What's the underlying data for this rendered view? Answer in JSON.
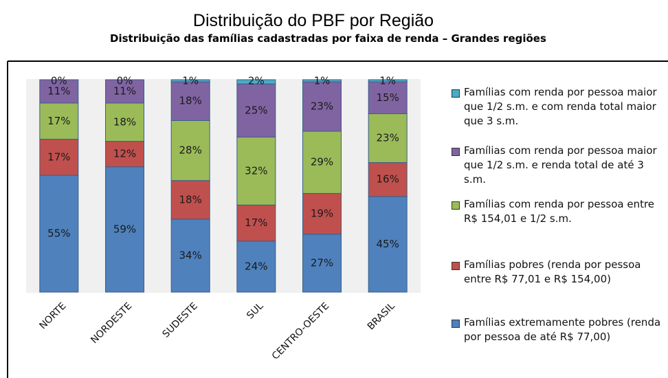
{
  "chart_data": {
    "type": "stacked_bar",
    "title": "Distribuição do PBF por Região",
    "subtitle": "Distribuição das famílias cadastradas por faixa de renda – Grandes regiões",
    "categories": [
      "NORTE",
      "NORDESTE",
      "SUDESTE",
      "SUL",
      "CENTRO-OESTE",
      "BRASIL"
    ],
    "series": [
      {
        "name": "Famílias extremamente pobres (renda por pessoa de até R$ 77,00)",
        "color": "#4f81bd",
        "values": [
          55,
          59,
          34,
          24,
          27,
          45
        ],
        "value_labels": [
          "55%",
          "59%",
          "34%",
          "24%",
          "27%",
          "45%"
        ]
      },
      {
        "name": "Famílias pobres (renda por pessoa entre R$ 77,01 e R$ 154,00)",
        "color": "#c0504d",
        "values": [
          17,
          12,
          18,
          17,
          19,
          16
        ],
        "value_labels": [
          "17%",
          "12%",
          "18%",
          "17%",
          "19%",
          "16%"
        ]
      },
      {
        "name": "Famílias com renda por pessoa entre R$ 154,01 e 1/2 s.m.",
        "color": "#9bbb59",
        "values": [
          17,
          18,
          28,
          32,
          29,
          23
        ],
        "value_labels": [
          "17%",
          "18%",
          "28%",
          "32%",
          "29%",
          "23%"
        ]
      },
      {
        "name": "Famílias com renda por pessoa maior que 1/2 s.m. e renda total de até 3 s.m.",
        "color": "#8064a2",
        "values": [
          11,
          11,
          18,
          25,
          23,
          15
        ],
        "value_labels": [
          "11%",
          "11%",
          "18%",
          "25%",
          "23%",
          "15%"
        ]
      },
      {
        "name": "Famílias com renda por pessoa maior que 1/2 s.m. e com renda total maior que 3 s.m.",
        "color": "#4bacc6",
        "values": [
          0,
          0,
          1,
          2,
          1,
          1
        ],
        "value_labels": [
          "0%",
          "0%",
          "1%",
          "2%",
          "1%",
          "1%"
        ]
      }
    ]
  }
}
